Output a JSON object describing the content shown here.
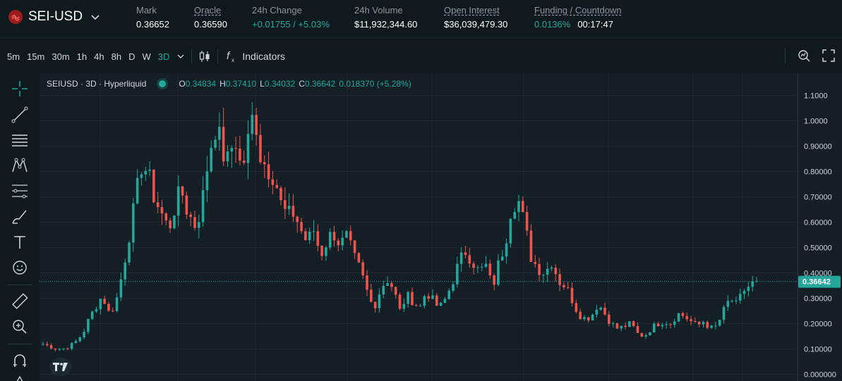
{
  "header": {
    "pair": "SEI-USD",
    "stats": {
      "mark_label": "Mark",
      "mark_value": "0.36652",
      "oracle_label": "Oracle",
      "oracle_value": "0.36590",
      "change_label": "24h Change",
      "change_value": "+0.01755 / +5.03%",
      "volume_label": "24h Volume",
      "volume_value": "$11,932,344.60",
      "oi_label": "Open Interest",
      "oi_value": "$36,039,479.30",
      "funding_label": "Funding / Countdown",
      "funding_value": "0.0136%",
      "countdown_value": "00:17:47"
    }
  },
  "toolbar": {
    "timeframes": [
      "5m",
      "15m",
      "30m",
      "1h",
      "4h",
      "8h",
      "D",
      "W",
      "3D"
    ],
    "active_timeframe": "3D",
    "indicators_label": "Indicators"
  },
  "sidebar_icons": [
    "crosshair-icon",
    "trendline-icon",
    "parallel-channel-icon",
    "pattern-icon",
    "fib-icon",
    "brush-icon",
    "text-icon",
    "emoji-icon",
    "ruler-icon",
    "zoom-icon",
    "magnet-icon"
  ],
  "legend": {
    "symbol": "SEIUSD · 3D · Hyperliquid",
    "o_label": "O",
    "o": "0.34834",
    "h_label": "H",
    "h": "0.37410",
    "l_label": "L",
    "l": "0.34032",
    "c_label": "C",
    "c": "0.36642",
    "change": "0.018370 (+5.28%)"
  },
  "colors": {
    "up": "#26a69a",
    "down": "#ef5350",
    "background": "#131f25",
    "accent": "#26a69a"
  },
  "chart_data": {
    "type": "candlestick",
    "y_ticks": [
      "1.1000",
      "1.0000",
      "0.90000",
      "0.80000",
      "0.70000",
      "0.60000",
      "0.50000",
      "0.40000",
      "0.30000",
      "0.20000",
      "0.10000",
      "0.000000"
    ],
    "ylim": [
      0,
      1.13
    ],
    "last_price": 0.36642,
    "last_price_label": "0.36642",
    "grid": true,
    "close_path": [
      0.12,
      0.11,
      0.1,
      0.1,
      0.11,
      0.13,
      0.16,
      0.22,
      0.27,
      0.31,
      0.24,
      0.28,
      0.4,
      0.55,
      0.68,
      0.85,
      0.77,
      0.69,
      0.63,
      0.57,
      0.67,
      0.72,
      0.63,
      0.59,
      0.66,
      0.85,
      0.99,
      0.89,
      0.83,
      0.95,
      0.8,
      0.91,
      1.05,
      0.85,
      0.82,
      0.79,
      0.67,
      0.62,
      0.64,
      0.57,
      0.52,
      0.57,
      0.47,
      0.53,
      0.56,
      0.51,
      0.54,
      0.46,
      0.41,
      0.33,
      0.26,
      0.33,
      0.38,
      0.34,
      0.25,
      0.31,
      0.29,
      0.26,
      0.33,
      0.29,
      0.26,
      0.3,
      0.37,
      0.44,
      0.49,
      0.45,
      0.4,
      0.43,
      0.34,
      0.44,
      0.53,
      0.69,
      0.68,
      0.57,
      0.45,
      0.42,
      0.4,
      0.45,
      0.37,
      0.35,
      0.3,
      0.24,
      0.22,
      0.23,
      0.28,
      0.24,
      0.2,
      0.18,
      0.19,
      0.2,
      0.16,
      0.15,
      0.18,
      0.2,
      0.21,
      0.2,
      0.24,
      0.23,
      0.21,
      0.19,
      0.21,
      0.18,
      0.19,
      0.25,
      0.3,
      0.27,
      0.33,
      0.35,
      0.366
    ]
  }
}
